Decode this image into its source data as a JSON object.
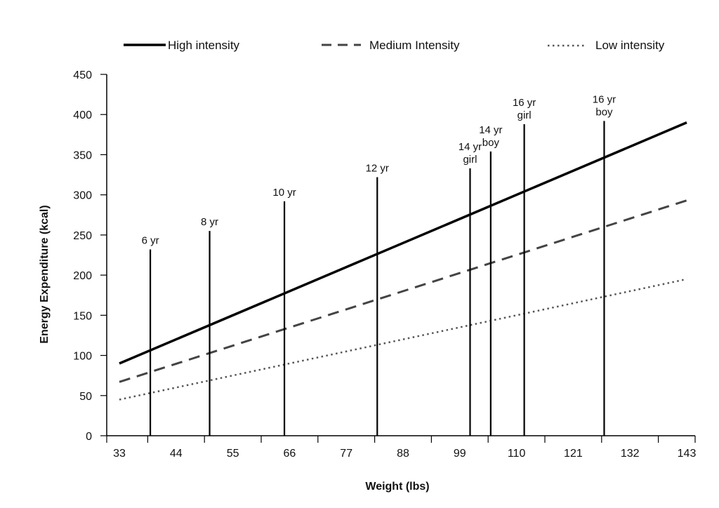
{
  "chart_data": {
    "type": "line",
    "xlabel": "Weight (lbs)",
    "ylabel": "Energy Expenditure (kcal)",
    "xlim": [
      33,
      143
    ],
    "ylim": [
      0,
      450
    ],
    "x_ticks": [
      33,
      44,
      55,
      66,
      77,
      88,
      99,
      110,
      121,
      132,
      143
    ],
    "y_ticks": [
      0,
      50,
      100,
      150,
      200,
      250,
      300,
      350,
      400,
      450
    ],
    "grid": false,
    "legend_position": "top",
    "series": [
      {
        "name": "High intensity",
        "style": "solid",
        "color": "#000000",
        "x": [
          33,
          143
        ],
        "y": [
          90,
          390
        ]
      },
      {
        "name": "Medium Intensity",
        "style": "dashed",
        "color": "#444444",
        "x": [
          33,
          143
        ],
        "y": [
          67,
          293
        ]
      },
      {
        "name": "Low intensity",
        "style": "dotted",
        "color": "#555555",
        "x": [
          33,
          143
        ],
        "y": [
          45,
          195
        ]
      }
    ],
    "markers": [
      {
        "x": 39,
        "height": 232,
        "label": [
          "6 yr"
        ]
      },
      {
        "x": 50.5,
        "height": 255,
        "label": [
          "8 yr"
        ]
      },
      {
        "x": 65,
        "height": 292,
        "label": [
          "10 yr"
        ]
      },
      {
        "x": 83,
        "height": 322,
        "label": [
          "12 yr"
        ]
      },
      {
        "x": 101,
        "height": 333,
        "label": [
          "14 yr",
          "girl"
        ]
      },
      {
        "x": 105,
        "height": 354,
        "label": [
          "14 yr",
          "boy"
        ]
      },
      {
        "x": 111.5,
        "height": 388,
        "label": [
          "16 yr",
          "girl"
        ]
      },
      {
        "x": 127,
        "height": 392,
        "label": [
          "16 yr",
          "boy"
        ]
      }
    ]
  }
}
